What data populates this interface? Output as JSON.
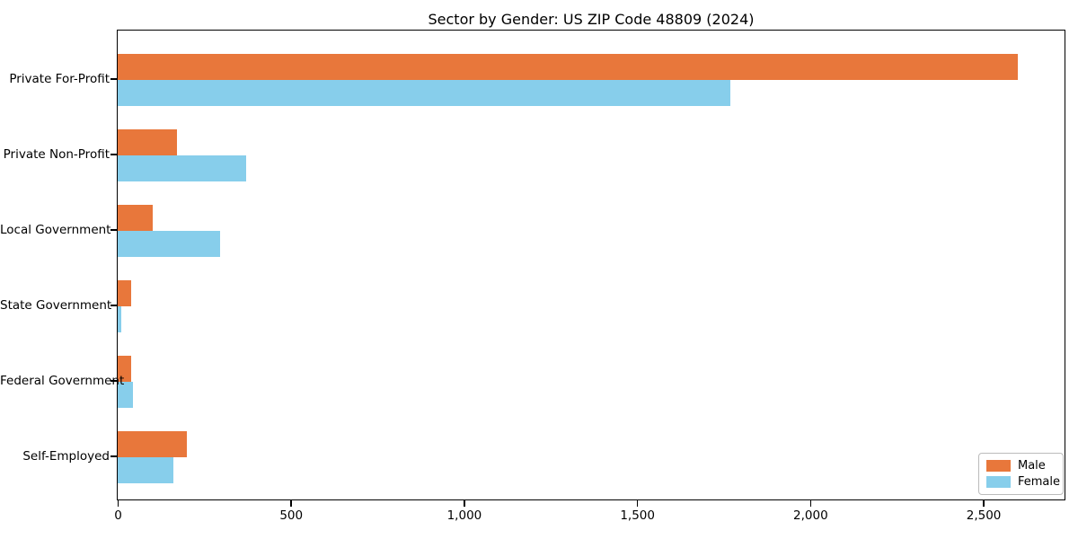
{
  "figure": {
    "background": "#ffffff"
  },
  "chart_data": {
    "type": "bar",
    "orientation": "horizontal",
    "title": "Sector by Gender: US ZIP Code 48809 (2024)",
    "categories": [
      "Private For-Profit",
      "Private Non-Profit",
      "Local Government",
      "State Government",
      "Federal Government",
      "Self-Employed"
    ],
    "series": [
      {
        "name": "Male",
        "color": "#e8773b",
        "values": [
          2600,
          170,
          100,
          40,
          40,
          200
        ]
      },
      {
        "name": "Female",
        "color": "#87ceeb",
        "values": [
          1770,
          370,
          295,
          10,
          45,
          160
        ]
      }
    ],
    "xlabel": "",
    "ylabel": "",
    "xlim": [
      0,
      2732
    ],
    "x_ticks": [
      0,
      500,
      1000,
      1500,
      2000,
      2500
    ],
    "x_tick_labels": [
      "0",
      "500",
      "1,000",
      "1,500",
      "2,000",
      "2,500"
    ],
    "grid": false,
    "legend_position": "lower right"
  }
}
